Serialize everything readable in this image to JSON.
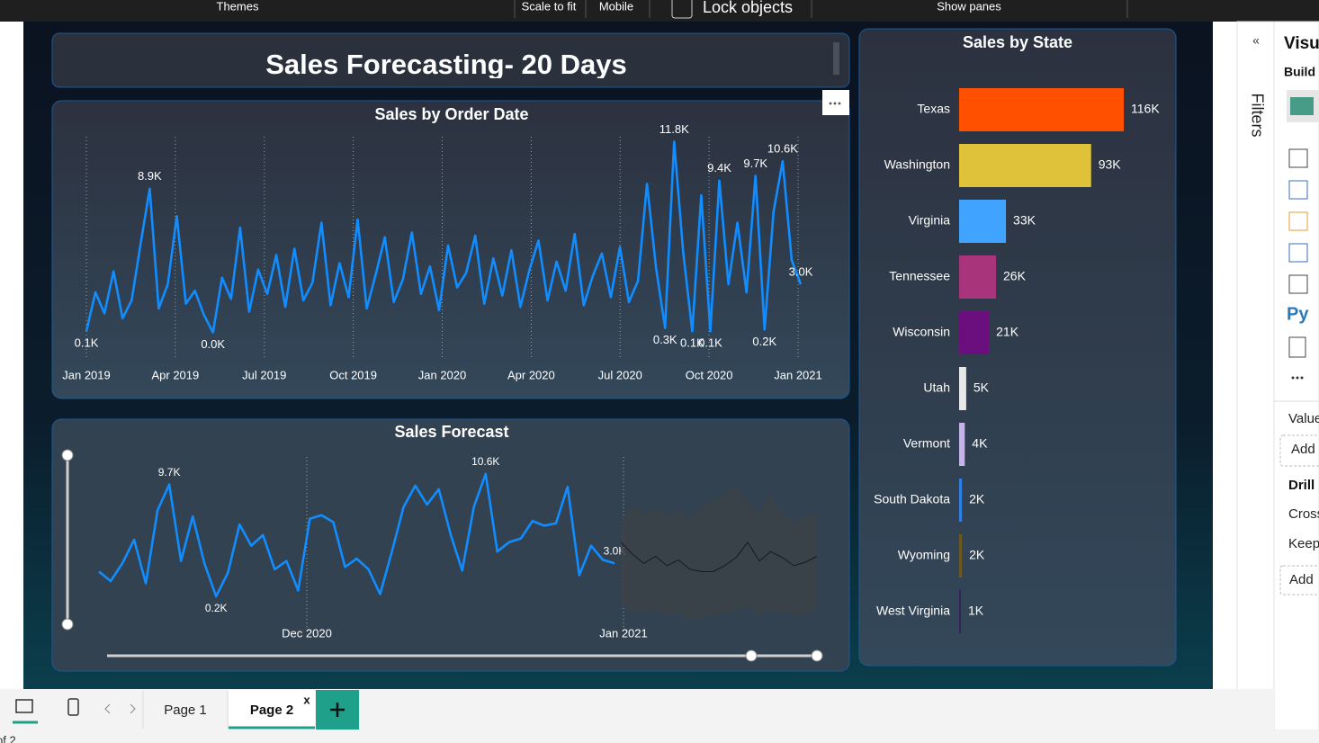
{
  "toolbar": {
    "themes": "Themes",
    "scale_to_fit": "Scale to fit",
    "mobile": "Mobile",
    "lock_objects": "Lock objects",
    "show_panes": "Show panes"
  },
  "report_title": "Sales Forecasting- 20 Days",
  "chart_data": [
    {
      "type": "line",
      "title": "Sales by Order Date",
      "xticks": [
        "Jan 2019",
        "Apr 2019",
        "Jul 2019",
        "Oct 2019",
        "Jan 2020",
        "Apr 2020",
        "Jul 2020",
        "Oct 2020",
        "Jan 2021"
      ],
      "ylim": [
        0,
        12000
      ],
      "series": [
        {
          "color": "#118dff",
          "values": [
            100,
            2500,
            1200,
            3800,
            900,
            2000,
            5500,
            8900,
            1500,
            3000,
            7200,
            1800,
            2600,
            1100,
            30,
            3400,
            2100,
            6500,
            1300,
            3900,
            2400,
            4800,
            1600,
            5200,
            2000,
            3100,
            6800,
            1700,
            4300,
            2200,
            7000,
            1500,
            3600,
            5900,
            1900,
            3300,
            6200,
            2400,
            4100,
            1400,
            5400,
            2800,
            3700,
            6000,
            1800,
            4600,
            2300,
            5100,
            1600,
            3900,
            5700,
            2000,
            4400,
            2600,
            6100,
            1700,
            3500,
            4900,
            2200,
            5300,
            1900,
            3200,
            9200,
            4000,
            300,
            11800,
            5000,
            100,
            8500,
            100,
            9400,
            3000,
            6800,
            2500,
            9700,
            200,
            7500,
            10600,
            4500,
            3000
          ],
          "value_labels": [
            "0.1K",
            null,
            null,
            null,
            null,
            null,
            null,
            "8.9K",
            null,
            null,
            null,
            null,
            null,
            null,
            "0.0K",
            null,
            null,
            null,
            null,
            null,
            null,
            null,
            null,
            null,
            null,
            null,
            null,
            null,
            null,
            null,
            null,
            null,
            null,
            null,
            null,
            null,
            null,
            null,
            null,
            null,
            null,
            null,
            null,
            null,
            null,
            null,
            null,
            null,
            null,
            null,
            null,
            null,
            null,
            null,
            null,
            null,
            null,
            null,
            null,
            null,
            null,
            null,
            null,
            null,
            "0.3K",
            "11.8K",
            null,
            "0.1K",
            null,
            "0.1K",
            "9.4K",
            null,
            null,
            null,
            "9.7K",
            "0.2K",
            null,
            "10.6K",
            null,
            "3.0K"
          ]
        }
      ]
    },
    {
      "type": "line",
      "title": "Sales Forecast",
      "xticks": [
        "Dec 2020",
        "Jan 2021"
      ],
      "ylim": [
        0,
        11000
      ],
      "series": [
        {
          "color": "#118dff",
          "values": [
            2300,
            1500,
            3000,
            5000,
            1300,
            7500,
            9700,
            3200,
            7000,
            3000,
            200,
            2200,
            6300,
            4500,
            5400,
            2500,
            3200,
            700,
            6800,
            7100,
            6500,
            2700,
            3400,
            2500,
            400,
            4000,
            7800,
            9600,
            8000,
            9300,
            5500,
            2400,
            7800,
            10600,
            4000,
            4800,
            5100,
            6600,
            6200,
            6400,
            9500,
            2000,
            4500,
            3300,
            3000
          ],
          "value_labels": [
            null,
            null,
            null,
            null,
            null,
            null,
            "9.7K",
            null,
            null,
            null,
            "0.2K",
            null,
            null,
            null,
            null,
            null,
            null,
            null,
            null,
            null,
            null,
            null,
            null,
            null,
            null,
            null,
            null,
            null,
            null,
            null,
            null,
            null,
            null,
            "10.6K",
            null,
            null,
            null,
            null,
            null,
            null,
            null,
            null,
            null,
            null,
            "3.0K"
          ]
        },
        {
          "color": "#1a1a1a",
          "values": [
            4800,
            3800,
            3000,
            3600,
            2800,
            3300,
            2500,
            2300,
            2300,
            2800,
            3500,
            4800,
            3200,
            4000,
            3500,
            2800,
            3100,
            3600
          ],
          "upper": [
            6500,
            8000,
            7200,
            7800,
            6800,
            7500,
            6900,
            7600,
            8200,
            9000,
            9500,
            8300,
            7300,
            8800,
            7000,
            6500,
            7200,
            7400
          ],
          "lower": [
            -500,
            -1200,
            -1000,
            -800,
            -1500,
            -1200,
            -1700,
            -1600,
            -1500,
            -1300,
            -1000,
            -600,
            -1400,
            -900,
            -1200,
            -1500,
            -1300,
            -1100
          ]
        }
      ]
    },
    {
      "type": "bar",
      "orientation": "horizontal",
      "title": "Sales by State",
      "categories": [
        "Texas",
        "Washington",
        "Virginia",
        "Tennessee",
        "Wisconsin",
        "Utah",
        "Vermont",
        "South Dakota",
        "Wyoming",
        "West Virginia"
      ],
      "values": [
        116000,
        93000,
        33000,
        26000,
        21000,
        5000,
        4000,
        2000,
        2000,
        1000
      ],
      "value_labels": [
        "116K",
        "93K",
        "33K",
        "26K",
        "21K",
        "5K",
        "4K",
        "2K",
        "2K",
        "1K"
      ],
      "colors": [
        "#ff5000",
        "#e0c23a",
        "#3fa3ff",
        "#a8357c",
        "#6b0f7e",
        "#e8e8e8",
        "#c6b3e8",
        "#2d7fe6",
        "#6b5a1e",
        "#3a1f5e"
      ],
      "xlim": [
        0,
        116000
      ]
    }
  ],
  "filters_pane": {
    "label": "Filters"
  },
  "visualizations_pane": {
    "title": "Visu",
    "build": "Build",
    "python": "Py",
    "values": "Value",
    "add_1": "Add",
    "drill": "Drill",
    "cross": "Cross",
    "keep": "Keep",
    "add_2": "Add"
  },
  "page_tabs": {
    "pages": [
      "Page 1",
      "Page 2"
    ],
    "close": "x"
  },
  "status": "of 2"
}
